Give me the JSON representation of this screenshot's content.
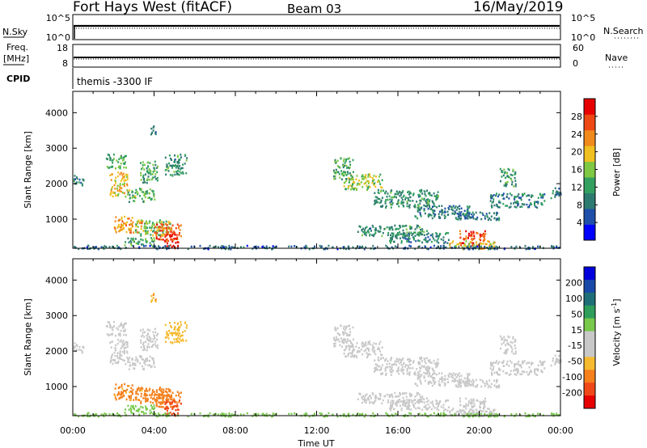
{
  "header": {
    "station": "Fort Hays West (fitACF)",
    "beam": "Beam 03",
    "date": "16/May/2019"
  },
  "noise_panel": {
    "left_label": "N.Sky",
    "right_label": "N.Search",
    "left_ticks": [
      "10^5",
      "10^0"
    ],
    "right_ticks": [
      "10^5",
      "10^0"
    ]
  },
  "freq_panel": {
    "left_label_1": "Freq.",
    "left_label_2": "[MHz]",
    "right_label": "Nave",
    "left_ticks": [
      "18",
      "8"
    ],
    "right_ticks": [
      "60",
      "0"
    ]
  },
  "cpid_panel": {
    "label": "CPID",
    "text": "themis -3300 IF"
  },
  "colors": {
    "power": [
      "#0000ff",
      "#1f4fa8",
      "#2d7a70",
      "#33a060",
      "#7fc844",
      "#f0c020",
      "#f08a1c",
      "#ee4814",
      "#e60000"
    ],
    "velocity": [
      "#e60000",
      "#f04818",
      "#f5801c",
      "#f6ba30",
      "#c8c8c8",
      "#c8c8c8",
      "#78c84c",
      "#2e9e5a",
      "#1e6e78",
      "#1848a8",
      "#0000dd"
    ],
    "noise_dots": "#000000"
  },
  "chart_data": [
    {
      "type": "heatmap",
      "panel": "power",
      "xlabel": "",
      "ylabel": "Slant Range [km]",
      "x_unit": "UT hours",
      "xlim": [
        0,
        24
      ],
      "ylim": [
        180,
        4600
      ],
      "y_ticks": [
        1000,
        2000,
        3000,
        4000
      ],
      "y_tick_labels": [
        "1000",
        "2000",
        "3000",
        "4000"
      ],
      "colorbar": {
        "label": "Power [dB]",
        "range": [
          0,
          32
        ],
        "ticks": [
          4,
          8,
          12,
          16,
          20,
          24,
          28
        ],
        "tick_labels": [
          "4",
          "8",
          "12",
          "16",
          "20",
          "24",
          "28"
        ]
      },
      "regions": [
        {
          "t0": 0.0,
          "t1": 0.5,
          "r0": 1950,
          "r1": 2250,
          "v": 9
        },
        {
          "t0": 1.6,
          "t1": 2.6,
          "r0": 2450,
          "r1": 2850,
          "v": 14
        },
        {
          "t0": 1.8,
          "t1": 2.7,
          "r0": 1650,
          "r1": 2350,
          "v": 20
        },
        {
          "t0": 2.7,
          "t1": 4.0,
          "r0": 1500,
          "r1": 1900,
          "v": 14
        },
        {
          "t0": 3.3,
          "t1": 4.2,
          "r0": 2050,
          "r1": 2650,
          "v": 12
        },
        {
          "t0": 3.8,
          "t1": 4.1,
          "r0": 3350,
          "r1": 3650,
          "v": 10
        },
        {
          "t0": 4.5,
          "t1": 5.6,
          "r0": 2250,
          "r1": 2850,
          "v": 11
        },
        {
          "t0": 2.0,
          "t1": 3.4,
          "r0": 650,
          "r1": 1100,
          "v": 22
        },
        {
          "t0": 3.0,
          "t1": 4.8,
          "r0": 550,
          "r1": 1000,
          "v": 16
        },
        {
          "t0": 4.0,
          "t1": 5.3,
          "r0": 450,
          "r1": 900,
          "v": 25
        },
        {
          "t0": 2.5,
          "t1": 4.0,
          "r0": 280,
          "r1": 500,
          "v": 13
        },
        {
          "t0": 4.5,
          "t1": 5.3,
          "r0": 200,
          "r1": 650,
          "v": 28
        },
        {
          "t0": 12.8,
          "t1": 13.8,
          "r0": 2150,
          "r1": 2750,
          "v": 12
        },
        {
          "t0": 13.3,
          "t1": 15.2,
          "r0": 1850,
          "r1": 2300,
          "v": 16
        },
        {
          "t0": 14.8,
          "t1": 18.0,
          "r0": 1350,
          "r1": 1850,
          "v": 11
        },
        {
          "t0": 16.8,
          "t1": 19.5,
          "r0": 1050,
          "r1": 1400,
          "v": 9
        },
        {
          "t0": 18.5,
          "t1": 21.0,
          "r0": 1000,
          "r1": 1250,
          "v": 8
        },
        {
          "t0": 20.5,
          "t1": 23.2,
          "r0": 1350,
          "r1": 1750,
          "v": 9
        },
        {
          "t0": 21.0,
          "t1": 21.8,
          "r0": 1950,
          "r1": 2450,
          "v": 12
        },
        {
          "t0": 14.0,
          "t1": 17.5,
          "r0": 550,
          "r1": 850,
          "v": 11
        },
        {
          "t0": 15.5,
          "t1": 18.5,
          "r0": 350,
          "r1": 650,
          "v": 10
        },
        {
          "t0": 19.0,
          "t1": 20.3,
          "r0": 280,
          "r1": 700,
          "v": 27
        },
        {
          "t0": 18.5,
          "t1": 20.8,
          "r0": 180,
          "r1": 420,
          "v": 20
        },
        {
          "t0": 23.5,
          "t1": 24.0,
          "r0": 1600,
          "r1": 1900,
          "v": 9
        },
        {
          "t0": 0.0,
          "t1": 24.0,
          "r0": 180,
          "r1": 280,
          "v": 7
        }
      ]
    },
    {
      "type": "heatmap",
      "panel": "velocity",
      "xlabel": "Time UT",
      "ylabel": "Slant Range [km]",
      "x_unit": "UT hours",
      "xlim": [
        0,
        24
      ],
      "ylim": [
        180,
        4600
      ],
      "x_ticks": [
        0,
        4,
        8,
        12,
        16,
        20,
        24
      ],
      "x_tick_labels": [
        "00:00",
        "04:00",
        "08:00",
        "12:00",
        "16:00",
        "20:00",
        "00:00"
      ],
      "y_ticks": [
        1000,
        2000,
        3000,
        4000
      ],
      "y_tick_labels": [
        "1000",
        "2000",
        "3000",
        "4000"
      ],
      "colorbar": {
        "label": "Velocity [m s",
        "label_sup": "-1",
        "label_end": "]",
        "tick_labels": [
          "200",
          "100",
          "50",
          "15",
          "-15",
          "-50",
          "-100",
          "-200"
        ]
      },
      "regions": [
        {
          "t0": 0.0,
          "t1": 0.5,
          "r0": 1950,
          "r1": 2250,
          "v": 0
        },
        {
          "t0": 1.6,
          "t1": 2.6,
          "r0": 2450,
          "r1": 2850,
          "v": 0
        },
        {
          "t0": 1.8,
          "t1": 2.7,
          "r0": 1650,
          "r1": 2350,
          "v": 0
        },
        {
          "t0": 2.7,
          "t1": 4.0,
          "r0": 1500,
          "r1": 1900,
          "v": 0
        },
        {
          "t0": 3.3,
          "t1": 4.2,
          "r0": 2050,
          "r1": 2650,
          "v": 0
        },
        {
          "t0": 3.8,
          "t1": 4.1,
          "r0": 3350,
          "r1": 3650,
          "v": -40
        },
        {
          "t0": 4.5,
          "t1": 5.6,
          "r0": 2250,
          "r1": 2850,
          "v": -30
        },
        {
          "t0": 2.0,
          "t1": 3.4,
          "r0": 650,
          "r1": 1100,
          "v": -60
        },
        {
          "t0": 3.0,
          "t1": 4.8,
          "r0": 550,
          "r1": 1000,
          "v": -70
        },
        {
          "t0": 4.0,
          "t1": 5.3,
          "r0": 450,
          "r1": 900,
          "v": -80
        },
        {
          "t0": 2.5,
          "t1": 4.0,
          "r0": 280,
          "r1": 500,
          "v": 30
        },
        {
          "t0": 4.5,
          "t1": 5.3,
          "r0": 200,
          "r1": 650,
          "v": -180
        },
        {
          "t0": 12.8,
          "t1": 13.8,
          "r0": 2150,
          "r1": 2750,
          "v": 0
        },
        {
          "t0": 13.3,
          "t1": 15.2,
          "r0": 1850,
          "r1": 2300,
          "v": 0
        },
        {
          "t0": 14.8,
          "t1": 18.0,
          "r0": 1350,
          "r1": 1850,
          "v": 0
        },
        {
          "t0": 16.8,
          "t1": 19.5,
          "r0": 1050,
          "r1": 1400,
          "v": 0
        },
        {
          "t0": 18.5,
          "t1": 21.0,
          "r0": 1000,
          "r1": 1250,
          "v": 0
        },
        {
          "t0": 20.5,
          "t1": 23.2,
          "r0": 1350,
          "r1": 1750,
          "v": 0
        },
        {
          "t0": 21.0,
          "t1": 21.8,
          "r0": 1950,
          "r1": 2450,
          "v": 0
        },
        {
          "t0": 14.0,
          "t1": 17.5,
          "r0": 550,
          "r1": 850,
          "v": 0
        },
        {
          "t0": 15.5,
          "t1": 18.5,
          "r0": 350,
          "r1": 650,
          "v": 0
        },
        {
          "t0": 19.0,
          "t1": 20.3,
          "r0": 280,
          "r1": 700,
          "v": 0
        },
        {
          "t0": 18.5,
          "t1": 20.8,
          "r0": 180,
          "r1": 420,
          "v": 0
        },
        {
          "t0": 23.5,
          "t1": 24.0,
          "r0": 1600,
          "r1": 1900,
          "v": 0
        },
        {
          "t0": 0.0,
          "t1": 24.0,
          "r0": 180,
          "r1": 280,
          "v": 30
        }
      ]
    }
  ]
}
